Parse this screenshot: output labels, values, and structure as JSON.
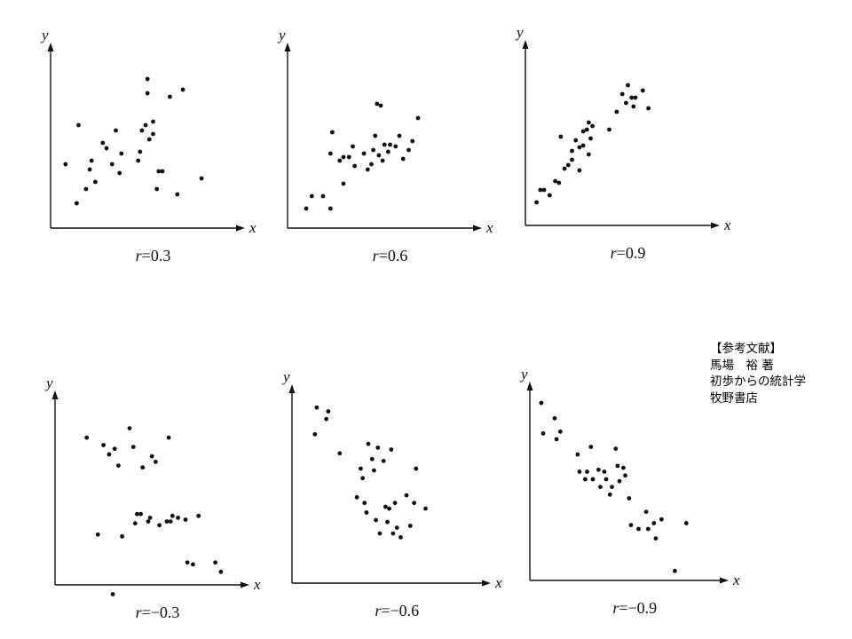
{
  "chart_data": [
    {
      "type": "scatter",
      "xlabel": "x",
      "ylabel": "y",
      "correlation_label": "0.3",
      "points": [
        [
          0.08,
          0.36
        ],
        [
          0.14,
          0.14
        ],
        [
          0.15,
          0.58
        ],
        [
          0.19,
          0.22
        ],
        [
          0.21,
          0.33
        ],
        [
          0.22,
          0.38
        ],
        [
          0.24,
          0.26
        ],
        [
          0.28,
          0.48
        ],
        [
          0.3,
          0.45
        ],
        [
          0.33,
          0.36
        ],
        [
          0.35,
          0.55
        ],
        [
          0.37,
          0.31
        ],
        [
          0.38,
          0.42
        ],
        [
          0.47,
          0.38
        ],
        [
          0.48,
          0.43
        ],
        [
          0.49,
          0.55
        ],
        [
          0.51,
          0.58
        ],
        [
          0.52,
          0.84
        ],
        [
          0.52,
          0.76
        ],
        [
          0.53,
          0.5
        ],
        [
          0.55,
          0.6
        ],
        [
          0.55,
          0.53
        ],
        [
          0.57,
          0.22
        ],
        [
          0.58,
          0.32
        ],
        [
          0.6,
          0.32
        ],
        [
          0.64,
          0.74
        ],
        [
          0.68,
          0.19
        ],
        [
          0.71,
          0.78
        ],
        [
          0.81,
          0.28
        ]
      ]
    },
    {
      "type": "scatter",
      "xlabel": "x",
      "ylabel": "y",
      "correlation_label": "0.6",
      "points": [
        [
          0.1,
          0.11
        ],
        [
          0.13,
          0.18
        ],
        [
          0.19,
          0.18
        ],
        [
          0.23,
          0.42
        ],
        [
          0.24,
          0.54
        ],
        [
          0.23,
          0.11
        ],
        [
          0.28,
          0.38
        ],
        [
          0.3,
          0.4
        ],
        [
          0.33,
          0.4
        ],
        [
          0.35,
          0.46
        ],
        [
          0.36,
          0.35
        ],
        [
          0.3,
          0.25
        ],
        [
          0.41,
          0.42
        ],
        [
          0.43,
          0.33
        ],
        [
          0.45,
          0.36
        ],
        [
          0.46,
          0.44
        ],
        [
          0.47,
          0.52
        ],
        [
          0.48,
          0.7
        ],
        [
          0.49,
          0.41
        ],
        [
          0.5,
          0.69
        ],
        [
          0.51,
          0.38
        ],
        [
          0.52,
          0.47
        ],
        [
          0.54,
          0.43
        ],
        [
          0.55,
          0.47
        ],
        [
          0.58,
          0.46
        ],
        [
          0.6,
          0.52
        ],
        [
          0.62,
          0.39
        ],
        [
          0.65,
          0.44
        ],
        [
          0.67,
          0.49
        ],
        [
          0.7,
          0.62
        ]
      ]
    },
    {
      "type": "scatter",
      "xlabel": "x",
      "ylabel": "y",
      "correlation_label": "0.9",
      "points": [
        [
          0.06,
          0.13
        ],
        [
          0.08,
          0.2
        ],
        [
          0.1,
          0.2
        ],
        [
          0.13,
          0.17
        ],
        [
          0.16,
          0.25
        ],
        [
          0.18,
          0.24
        ],
        [
          0.19,
          0.5
        ],
        [
          0.21,
          0.32
        ],
        [
          0.23,
          0.34
        ],
        [
          0.25,
          0.37
        ],
        [
          0.25,
          0.42
        ],
        [
          0.27,
          0.48
        ],
        [
          0.29,
          0.31
        ],
        [
          0.29,
          0.44
        ],
        [
          0.31,
          0.53
        ],
        [
          0.31,
          0.45
        ],
        [
          0.33,
          0.54
        ],
        [
          0.34,
          0.58
        ],
        [
          0.34,
          0.4
        ],
        [
          0.35,
          0.49
        ],
        [
          0.36,
          0.56
        ],
        [
          0.45,
          0.54
        ],
        [
          0.49,
          0.64
        ],
        [
          0.52,
          0.74
        ],
        [
          0.54,
          0.69
        ],
        [
          0.55,
          0.79
        ],
        [
          0.57,
          0.72
        ],
        [
          0.58,
          0.67
        ],
        [
          0.59,
          0.72
        ],
        [
          0.63,
          0.76
        ],
        [
          0.66,
          0.66
        ]
      ]
    },
    {
      "type": "scatter",
      "xlabel": "x",
      "ylabel": "y",
      "correlation_label": "−0.3",
      "points": [
        [
          0.17,
          0.79
        ],
        [
          0.23,
          0.27
        ],
        [
          0.26,
          0.75
        ],
        [
          0.29,
          0.7
        ],
        [
          0.32,
          0.73
        ],
        [
          0.34,
          0.64
        ],
        [
          0.36,
          0.26
        ],
        [
          0.4,
          0.84
        ],
        [
          0.42,
          0.74
        ],
        [
          0.43,
          0.33
        ],
        [
          0.44,
          0.38
        ],
        [
          0.46,
          0.38
        ],
        [
          0.47,
          0.63
        ],
        [
          0.5,
          0.34
        ],
        [
          0.51,
          0.36
        ],
        [
          0.52,
          0.69
        ],
        [
          0.54,
          0.66
        ],
        [
          0.56,
          0.32
        ],
        [
          0.6,
          0.34
        ],
        [
          0.61,
          0.79
        ],
        [
          0.62,
          0.34
        ],
        [
          0.63,
          0.37
        ],
        [
          0.66,
          0.36
        ],
        [
          0.7,
          0.35
        ],
        [
          0.71,
          0.12
        ],
        [
          0.74,
          0.11
        ],
        [
          0.77,
          0.37
        ],
        [
          0.86,
          0.12
        ],
        [
          0.89,
          0.07
        ],
        [
          0.31,
          -0.05
        ]
      ]
    },
    {
      "type": "scatter",
      "xlabel": "x",
      "ylabel": "y",
      "correlation_label": "−0.6",
      "points": [
        [
          0.12,
          0.78
        ],
        [
          0.13,
          0.92
        ],
        [
          0.18,
          0.86
        ],
        [
          0.19,
          0.9
        ],
        [
          0.25,
          0.68
        ],
        [
          0.34,
          0.45
        ],
        [
          0.36,
          0.6
        ],
        [
          0.37,
          0.55
        ],
        [
          0.38,
          0.42
        ],
        [
          0.39,
          0.37
        ],
        [
          0.4,
          0.73
        ],
        [
          0.42,
          0.65
        ],
        [
          0.43,
          0.59
        ],
        [
          0.44,
          0.33
        ],
        [
          0.45,
          0.71
        ],
        [
          0.46,
          0.26
        ],
        [
          0.48,
          0.64
        ],
        [
          0.49,
          0.4
        ],
        [
          0.5,
          0.32
        ],
        [
          0.51,
          0.39
        ],
        [
          0.52,
          0.7
        ],
        [
          0.53,
          0.26
        ],
        [
          0.54,
          0.42
        ],
        [
          0.55,
          0.29
        ],
        [
          0.57,
          0.24
        ],
        [
          0.6,
          0.46
        ],
        [
          0.62,
          0.3
        ],
        [
          0.64,
          0.42
        ],
        [
          0.65,
          0.6
        ],
        [
          0.7,
          0.39
        ]
      ]
    },
    {
      "type": "scatter",
      "xlabel": "x",
      "ylabel": "y",
      "correlation_label": "−0.9",
      "points": [
        [
          0.06,
          0.93
        ],
        [
          0.07,
          0.77
        ],
        [
          0.13,
          0.85
        ],
        [
          0.14,
          0.74
        ],
        [
          0.16,
          0.78
        ],
        [
          0.25,
          0.66
        ],
        [
          0.26,
          0.57
        ],
        [
          0.29,
          0.53
        ],
        [
          0.3,
          0.57
        ],
        [
          0.32,
          0.7
        ],
        [
          0.33,
          0.53
        ],
        [
          0.36,
          0.58
        ],
        [
          0.37,
          0.49
        ],
        [
          0.39,
          0.57
        ],
        [
          0.4,
          0.53
        ],
        [
          0.42,
          0.45
        ],
        [
          0.43,
          0.49
        ],
        [
          0.45,
          0.69
        ],
        [
          0.46,
          0.6
        ],
        [
          0.47,
          0.52
        ],
        [
          0.49,
          0.59
        ],
        [
          0.5,
          0.55
        ],
        [
          0.52,
          0.43
        ],
        [
          0.53,
          0.29
        ],
        [
          0.57,
          0.27
        ],
        [
          0.61,
          0.36
        ],
        [
          0.62,
          0.27
        ],
        [
          0.65,
          0.3
        ],
        [
          0.66,
          0.22
        ],
        [
          0.69,
          0.32
        ],
        [
          0.76,
          0.05
        ],
        [
          0.82,
          0.3
        ]
      ]
    }
  ],
  "r_symbol": "r",
  "equals_sign": "=",
  "reference": {
    "heading": "【参考文献】",
    "author": "馬場　裕  著",
    "title": "初歩からの統計学",
    "publisher": "牧野書店"
  }
}
